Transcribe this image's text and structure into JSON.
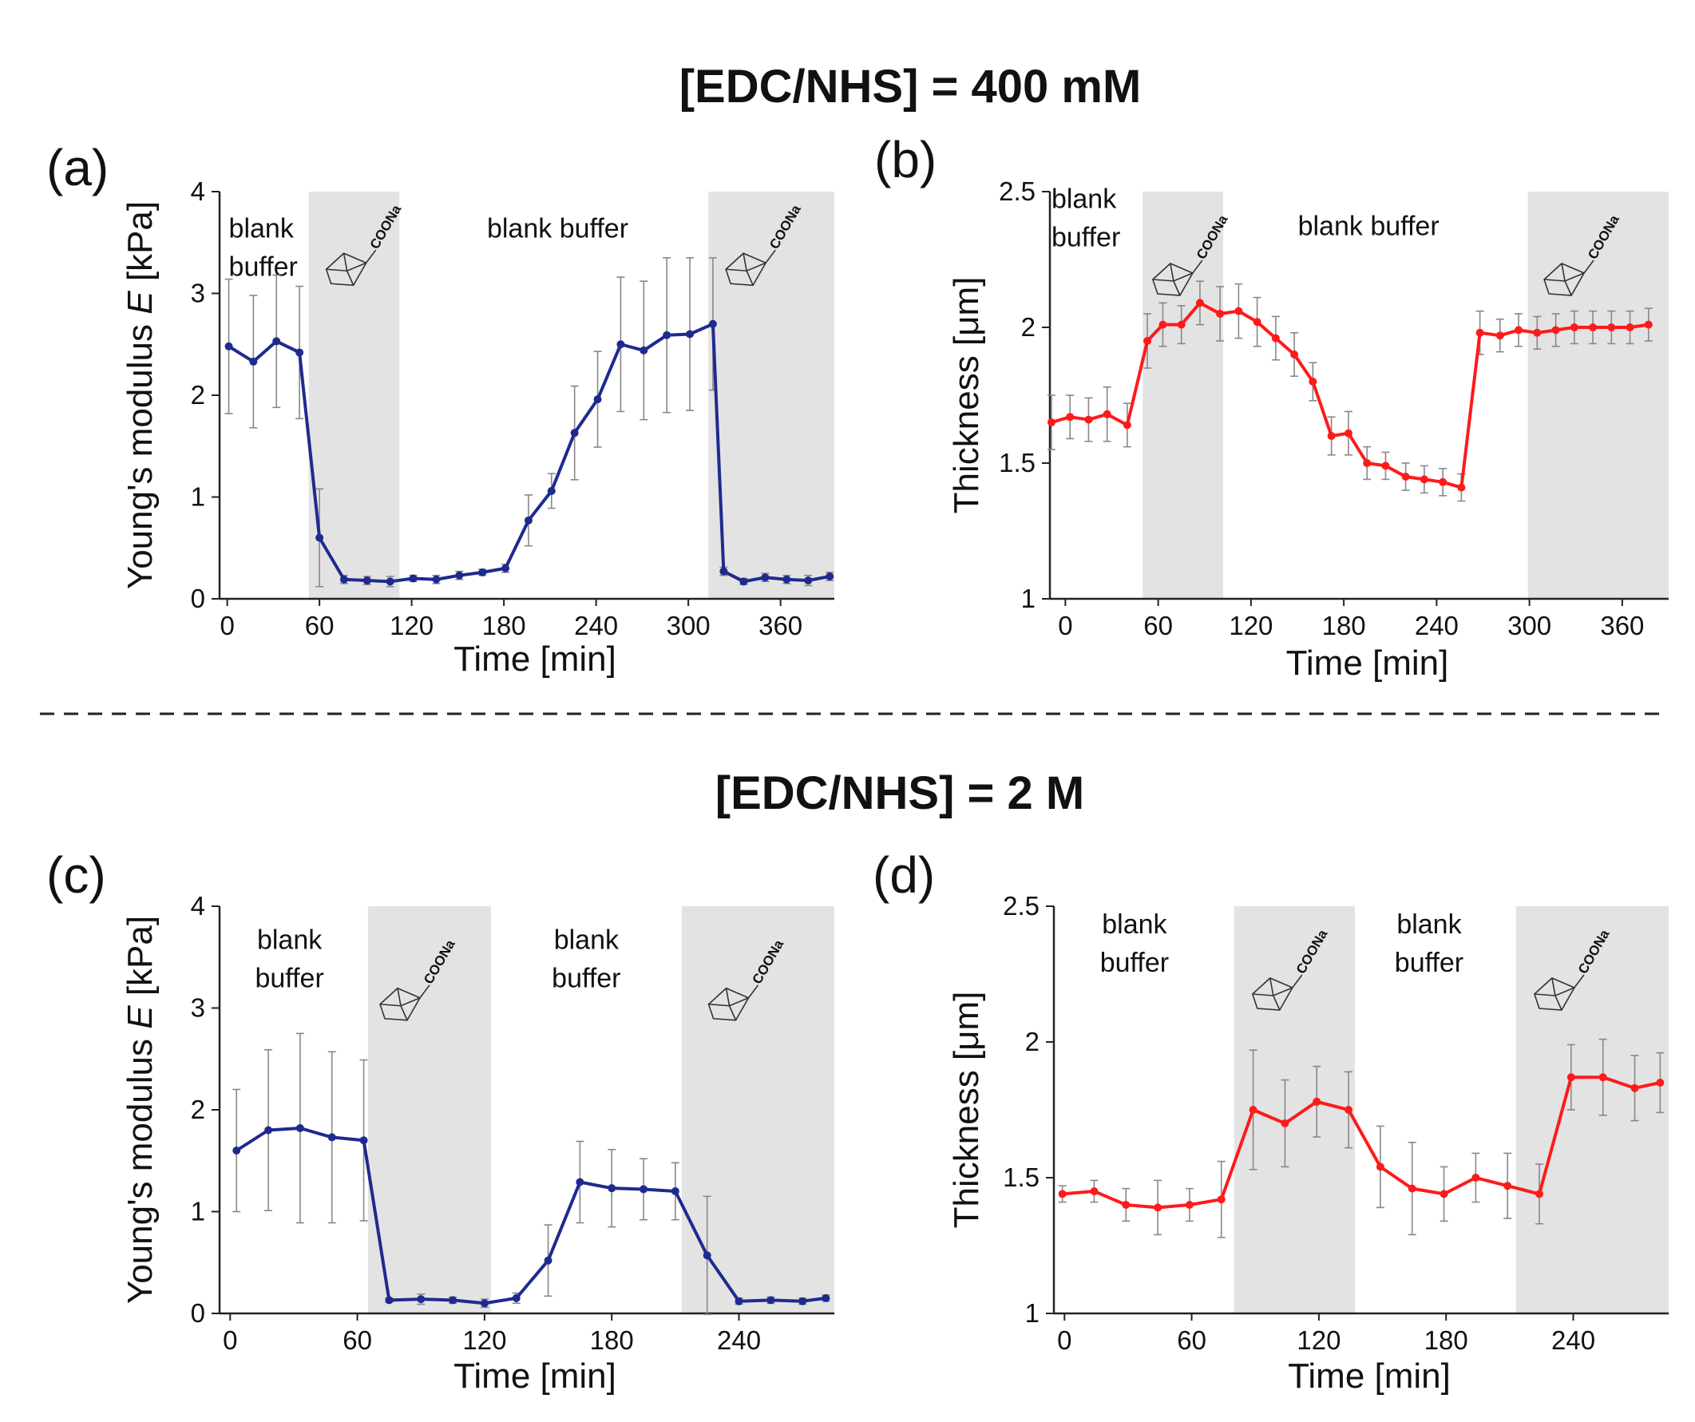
{
  "headings": {
    "top": "[EDC/NHS] = 400 mM",
    "bottom": "[EDC/NHS] = 2 M"
  },
  "colors": {
    "modulus_series": "#1f2a8f",
    "thickness_series": "#ff1a1a",
    "shading": "#e3e3e3",
    "error_bar": "#888888"
  },
  "molecule_label": "COONa",
  "chart_data": [
    {
      "id": "a",
      "type": "line",
      "panel_label": "(a)",
      "title": "",
      "xlabel": "Time [min]",
      "ylabel_prefix": "Young's modulus ",
      "ylabel_var": "E",
      "ylabel_unit": " [kPa]",
      "xlim": [
        -5,
        395
      ],
      "ylim": [
        0,
        4
      ],
      "xticks": [
        0,
        60,
        120,
        180,
        240,
        300,
        360
      ],
      "yticks": [
        0,
        1,
        2,
        3,
        4
      ],
      "ytick_labels": [
        "0",
        "1",
        "2",
        "3",
        "4"
      ],
      "shaded_regions": [
        [
          53,
          112
        ],
        [
          313,
          395
        ]
      ],
      "region_labels": [
        {
          "lines": [
            "blank",
            "buffer"
          ],
          "anchor_x": 1,
          "anchor_y": 3.55,
          "align": "start"
        },
        {
          "lines": [
            "blank buffer"
          ],
          "anchor_x": 215,
          "anchor_y": 3.55,
          "align": "middle"
        }
      ],
      "molecules": [
        [
          80,
          3.3
        ],
        [
          340,
          3.3
        ]
      ],
      "series": [
        {
          "name": "Young's modulus E",
          "color": "#1f2a8f",
          "x": [
            1,
            17,
            32,
            47,
            60,
            76,
            91,
            106,
            121,
            136,
            151,
            166,
            181,
            196,
            211,
            226,
            241,
            256,
            271,
            286,
            301,
            316,
            323,
            336,
            350,
            364,
            378,
            392
          ],
          "y": [
            2.48,
            2.33,
            2.53,
            2.42,
            0.6,
            0.19,
            0.18,
            0.17,
            0.2,
            0.19,
            0.23,
            0.26,
            0.3,
            0.77,
            1.06,
            1.63,
            1.96,
            2.5,
            2.44,
            2.59,
            2.6,
            2.7,
            0.27,
            0.17,
            0.21,
            0.19,
            0.18,
            0.22
          ],
          "err": [
            0.66,
            0.65,
            0.65,
            0.65,
            0.48,
            0.04,
            0.04,
            0.05,
            0.03,
            0.04,
            0.04,
            0.03,
            0.04,
            0.25,
            0.17,
            0.46,
            0.47,
            0.66,
            0.68,
            0.76,
            0.75,
            0.65,
            0.04,
            0.03,
            0.04,
            0.04,
            0.05,
            0.04
          ]
        }
      ]
    },
    {
      "id": "b",
      "type": "line",
      "panel_label": "(b)",
      "title": "",
      "xlabel": "Time [min]",
      "ylabel_prefix": "Thickness [μm]",
      "ylabel_var": "",
      "ylabel_unit": "",
      "xlim": [
        -10,
        390
      ],
      "ylim": [
        1,
        2.5
      ],
      "xticks": [
        0,
        60,
        120,
        180,
        240,
        300,
        360
      ],
      "yticks": [
        1,
        1.5,
        2,
        2.5
      ],
      "ytick_labels": [
        "1",
        "1.5",
        "2",
        "2.5"
      ],
      "shaded_regions": [
        [
          50,
          102
        ],
        [
          299,
          390
        ]
      ],
      "region_labels": [
        {
          "lines": [
            "blank",
            "buffer"
          ],
          "anchor_x": -9,
          "anchor_y": 2.44,
          "align": "start"
        },
        {
          "lines": [
            "blank buffer"
          ],
          "anchor_x": 196,
          "anchor_y": 2.34,
          "align": "middle"
        }
      ],
      "molecules": [
        [
          72,
          2.2
        ],
        [
          325,
          2.2
        ]
      ],
      "series": [
        {
          "name": "Thickness",
          "color": "#ff1a1a",
          "x": [
            -9,
            3,
            15,
            27,
            40,
            53,
            63,
            75,
            87,
            100,
            112,
            124,
            136,
            148,
            160,
            172,
            183,
            195,
            207,
            220,
            232,
            244,
            256,
            268,
            281,
            293,
            305,
            317,
            329,
            341,
            353,
            365,
            377
          ],
          "y": [
            1.65,
            1.67,
            1.66,
            1.68,
            1.64,
            1.95,
            2.01,
            2.01,
            2.09,
            2.05,
            2.06,
            2.02,
            1.96,
            1.9,
            1.8,
            1.6,
            1.61,
            1.5,
            1.49,
            1.45,
            1.44,
            1.43,
            1.41,
            1.98,
            1.97,
            1.99,
            1.98,
            1.99,
            2.0,
            2.0,
            2.0,
            2.0,
            2.01
          ],
          "err": [
            0.1,
            0.08,
            0.08,
            0.1,
            0.08,
            0.1,
            0.08,
            0.07,
            0.08,
            0.1,
            0.1,
            0.09,
            0.08,
            0.08,
            0.07,
            0.07,
            0.08,
            0.06,
            0.05,
            0.05,
            0.05,
            0.05,
            0.05,
            0.08,
            0.06,
            0.06,
            0.06,
            0.06,
            0.06,
            0.06,
            0.06,
            0.06,
            0.06
          ]
        }
      ]
    },
    {
      "id": "c",
      "type": "line",
      "panel_label": "(c)",
      "title": "",
      "xlabel": "Time [min]",
      "ylabel_prefix": "Young's modulus ",
      "ylabel_var": "E",
      "ylabel_unit": " [kPa]",
      "xlim": [
        -5,
        285
      ],
      "ylim": [
        0,
        4
      ],
      "xticks": [
        0,
        60,
        120,
        180,
        240
      ],
      "yticks": [
        0,
        1,
        2,
        3,
        4
      ],
      "ytick_labels": [
        "0",
        "1",
        "2",
        "3",
        "4"
      ],
      "shaded_regions": [
        [
          65,
          123
        ],
        [
          213,
          285
        ]
      ],
      "region_labels": [
        {
          "lines": [
            "blank",
            "buffer"
          ],
          "anchor_x": 28,
          "anchor_y": 3.58,
          "align": "middle"
        },
        {
          "lines": [
            "blank",
            "buffer"
          ],
          "anchor_x": 168,
          "anchor_y": 3.58,
          "align": "middle"
        }
      ],
      "molecules": [
        [
          82,
          3.1
        ],
        [
          237,
          3.1
        ]
      ],
      "series": [
        {
          "name": "Young's modulus E",
          "color": "#1f2a8f",
          "x": [
            3,
            18,
            33,
            48,
            63,
            75,
            90,
            105,
            120,
            135,
            150,
            165,
            180,
            195,
            210,
            225,
            240,
            255,
            270,
            281
          ],
          "y": [
            1.6,
            1.8,
            1.82,
            1.73,
            1.7,
            0.13,
            0.14,
            0.13,
            0.1,
            0.15,
            0.52,
            1.29,
            1.23,
            1.22,
            1.2,
            0.57,
            0.12,
            0.13,
            0.12,
            0.15
          ],
          "err": [
            0.6,
            0.79,
            0.93,
            0.84,
            0.79,
            0.02,
            0.05,
            0.03,
            0.04,
            0.05,
            0.35,
            0.4,
            0.38,
            0.3,
            0.28,
            0.58,
            0.03,
            0.03,
            0.03,
            0.03
          ]
        }
      ]
    },
    {
      "id": "d",
      "type": "line",
      "panel_label": "(d)",
      "title": "",
      "xlabel": "Time [min]",
      "ylabel_prefix": "Thickness [μm]",
      "ylabel_var": "",
      "ylabel_unit": "",
      "xlim": [
        -5,
        285
      ],
      "ylim": [
        1,
        2.5
      ],
      "xticks": [
        0,
        60,
        120,
        180,
        240
      ],
      "yticks": [
        1,
        1.5,
        2,
        2.5
      ],
      "ytick_labels": [
        "1",
        "1.5",
        "2",
        "2.5"
      ],
      "shaded_regions": [
        [
          80,
          137
        ],
        [
          213,
          285
        ]
      ],
      "region_labels": [
        {
          "lines": [
            "blank",
            "buffer"
          ],
          "anchor_x": 33,
          "anchor_y": 2.4,
          "align": "middle"
        },
        {
          "lines": [
            "blank",
            "buffer"
          ],
          "anchor_x": 172,
          "anchor_y": 2.4,
          "align": "middle"
        }
      ],
      "molecules": [
        [
          100,
          2.2
        ],
        [
          233,
          2.2
        ]
      ],
      "series": [
        {
          "name": "Thickness",
          "color": "#ff1a1a",
          "x": [
            -1,
            14,
            29,
            44,
            59,
            74,
            89,
            104,
            119,
            134,
            149,
            164,
            179,
            194,
            209,
            224,
            239,
            254,
            269,
            281
          ],
          "y": [
            1.44,
            1.45,
            1.4,
            1.39,
            1.4,
            1.42,
            1.75,
            1.7,
            1.78,
            1.75,
            1.54,
            1.46,
            1.44,
            1.5,
            1.47,
            1.44,
            1.87,
            1.87,
            1.83,
            1.85
          ],
          "err": [
            0.03,
            0.04,
            0.06,
            0.1,
            0.06,
            0.14,
            0.22,
            0.16,
            0.13,
            0.14,
            0.15,
            0.17,
            0.1,
            0.09,
            0.12,
            0.11,
            0.12,
            0.14,
            0.12,
            0.11
          ]
        }
      ]
    }
  ]
}
